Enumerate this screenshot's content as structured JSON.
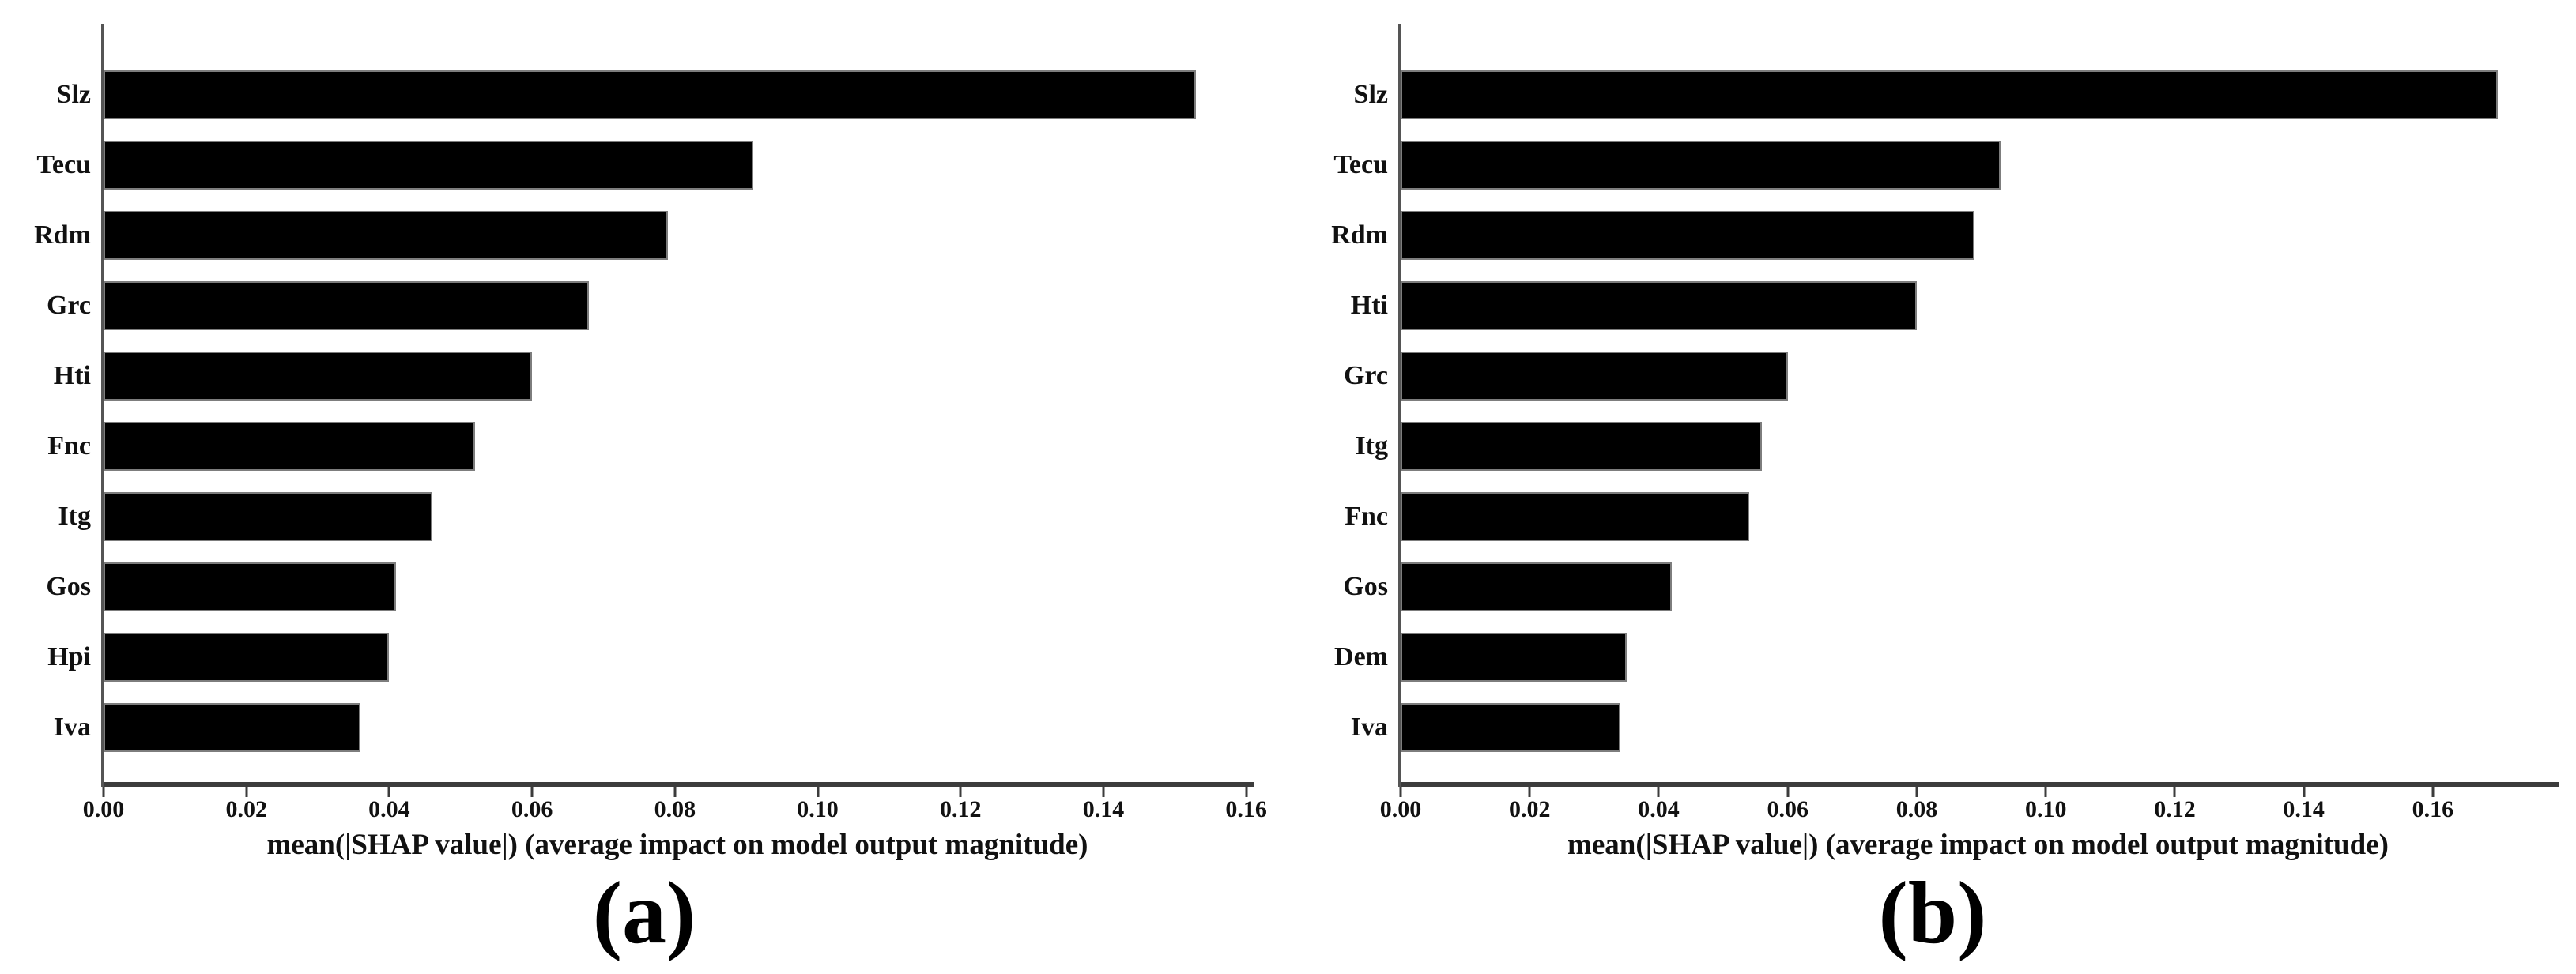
{
  "figure": {
    "background": "#ffffff",
    "description_visible_text_only": true
  },
  "colors": {
    "bar": "#000000",
    "bar_border": "#7d7d7d",
    "x_axis_line": "#3c3c3c",
    "y_axis_line": "#555555",
    "text": "#111111"
  },
  "chart_data": [
    {
      "type": "bar",
      "orientation": "horizontal",
      "caption": "(a)",
      "title": "",
      "xlabel": "mean(|SHAP value|) (average impact on model output magnitude)",
      "ylabel": "",
      "grid": false,
      "legend": null,
      "categories": [
        "Slz",
        "Tecu",
        "Rdm",
        "Grc",
        "Hti",
        "Fnc",
        "Itg",
        "Gos",
        "Hpi",
        "Iva"
      ],
      "values": [
        0.153,
        0.091,
        0.079,
        0.068,
        0.06,
        0.052,
        0.046,
        0.041,
        0.04,
        0.036
      ],
      "xlim": [
        0,
        0.1607
      ],
      "xticks": [
        0.0,
        0.02,
        0.04,
        0.06,
        0.08,
        0.1,
        0.12,
        0.14,
        0.16
      ],
      "xtick_labels": [
        "0.00",
        "0.02",
        "0.04",
        "0.06",
        "0.08",
        "0.10",
        "0.12",
        "0.14",
        "0.16"
      ]
    },
    {
      "type": "bar",
      "orientation": "horizontal",
      "caption": "(b)",
      "title": "",
      "xlabel": "mean(|SHAP value|) (average impact on model output magnitude)",
      "ylabel": "",
      "grid": false,
      "legend": null,
      "categories": [
        "Slz",
        "Tecu",
        "Rdm",
        "Hti",
        "Grc",
        "Itg",
        "Fnc",
        "Gos",
        "Dem",
        "Iva"
      ],
      "values": [
        0.17,
        0.093,
        0.089,
        0.08,
        0.06,
        0.056,
        0.054,
        0.042,
        0.035,
        0.034
      ],
      "xlim": [
        0,
        0.179
      ],
      "xticks": [
        0.0,
        0.02,
        0.04,
        0.06,
        0.08,
        0.1,
        0.12,
        0.14,
        0.16
      ],
      "xtick_labels": [
        "0.00",
        "0.02",
        "0.04",
        "0.06",
        "0.08",
        "0.10",
        "0.12",
        "0.14",
        "0.16"
      ]
    }
  ]
}
